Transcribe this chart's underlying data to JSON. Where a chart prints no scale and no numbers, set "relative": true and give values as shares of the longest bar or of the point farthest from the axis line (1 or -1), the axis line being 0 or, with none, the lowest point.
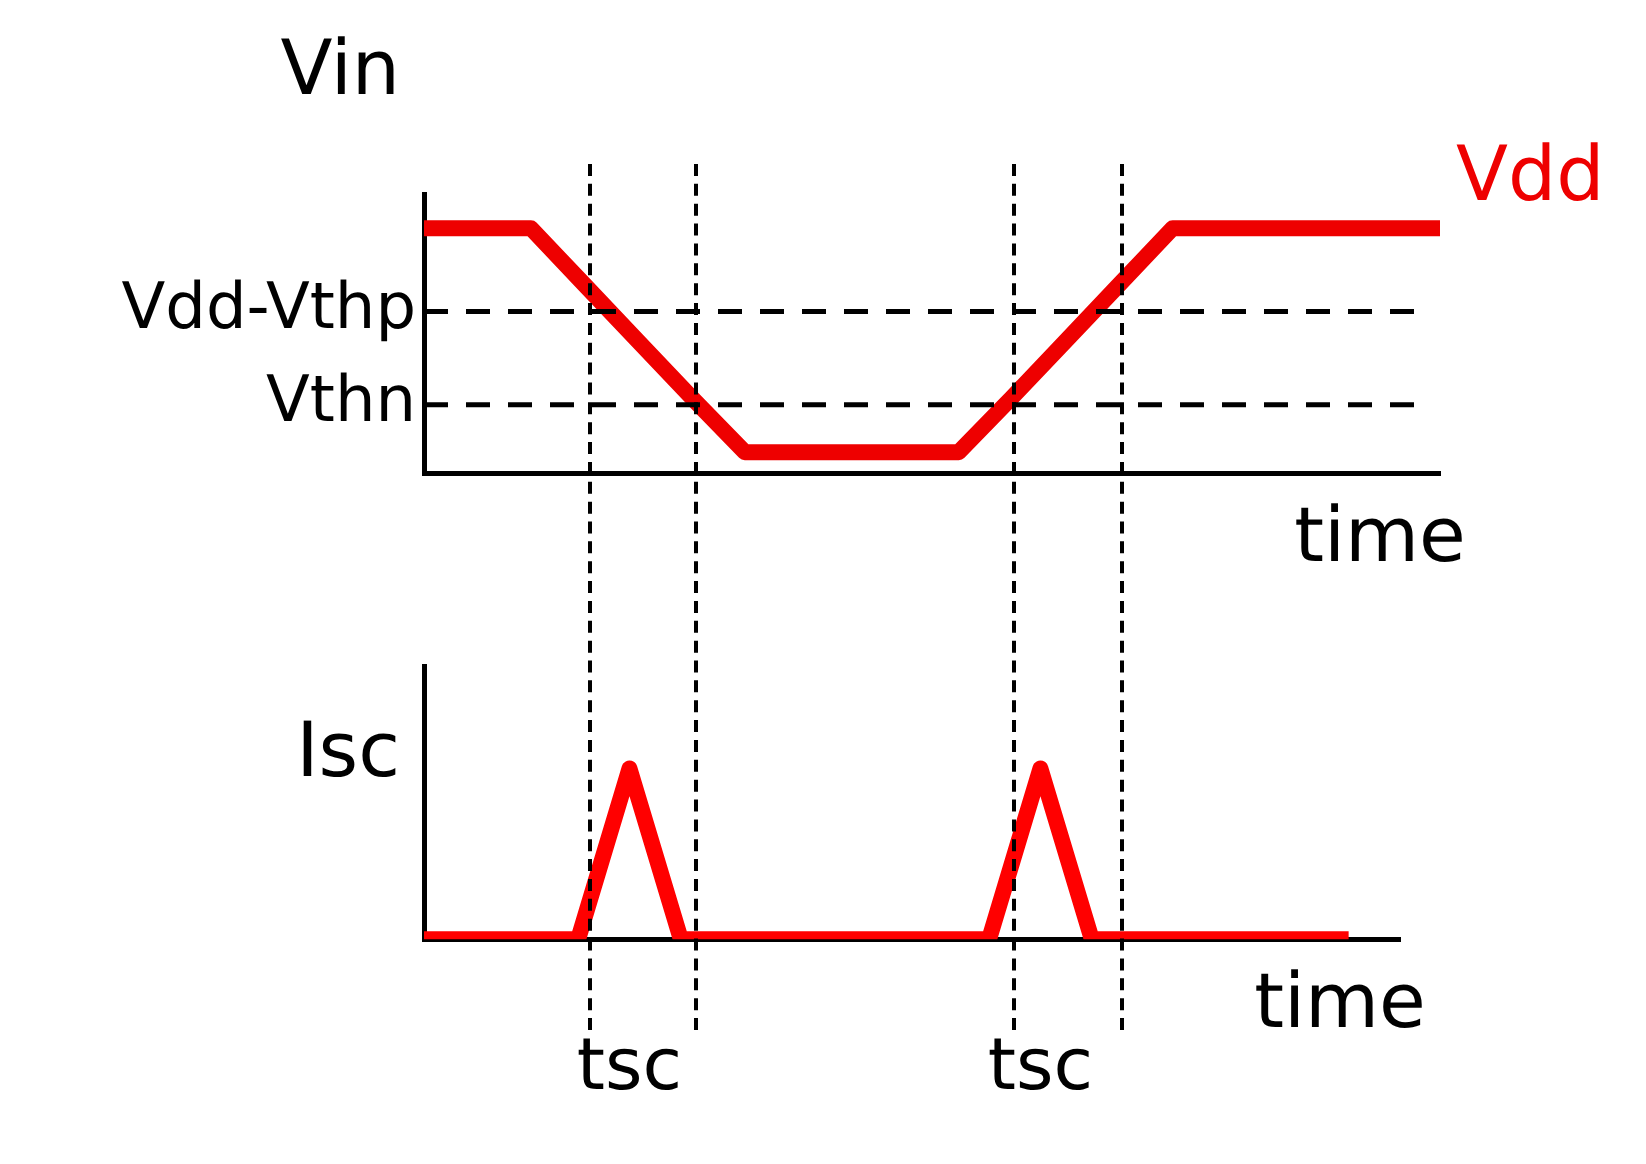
{
  "chart_data": [
    {
      "type": "line",
      "ylabel": "Vin",
      "xlabel": "time",
      "relative": true,
      "categories": [
        null,
        null,
        null,
        null,
        null,
        null,
        null,
        null,
        null,
        null,
        null,
        null,
        null,
        null,
        null,
        null,
        null,
        null,
        null,
        null
      ],
      "series": [
        {
          "name": "Vdd",
          "color": "#ee0000",
          "values": [
            1,
            1,
            1,
            0.77,
            0.54,
            0.31,
            0.086,
            0.086,
            0.086,
            0.086,
            0.086,
            0.31,
            0.54,
            0.77,
            1,
            1,
            1,
            1,
            1,
            1
          ]
        }
      ],
      "ref_lines": [
        {
          "axis": "y",
          "value": 0.66,
          "label": "Vdd-Vthp",
          "line_style": "dashed"
        },
        {
          "axis": "y",
          "value": 0.28,
          "label": "Vthn",
          "line_style": "dashed"
        }
      ],
      "grid": false,
      "legend": false,
      "marker": "none",
      "line_style": "solid"
    },
    {
      "type": "line",
      "ylabel": "Isc",
      "xlabel": "time",
      "relative": true,
      "categories": [
        null,
        null,
        null,
        null,
        null,
        null,
        null,
        null,
        null,
        null,
        null,
        null,
        null,
        null,
        null,
        null,
        null,
        null,
        null,
        null
      ],
      "series": [
        {
          "color": "#ff0000",
          "values": [
            0,
            0,
            0,
            0,
            1,
            0,
            0,
            0,
            0,
            0,
            0,
            0,
            1,
            0,
            0,
            0,
            0,
            0,
            0,
            null
          ]
        }
      ],
      "annotations": [
        "tsc",
        "tsc"
      ],
      "grid": false,
      "legend": false,
      "marker": "none",
      "line_style": "solid"
    }
  ]
}
